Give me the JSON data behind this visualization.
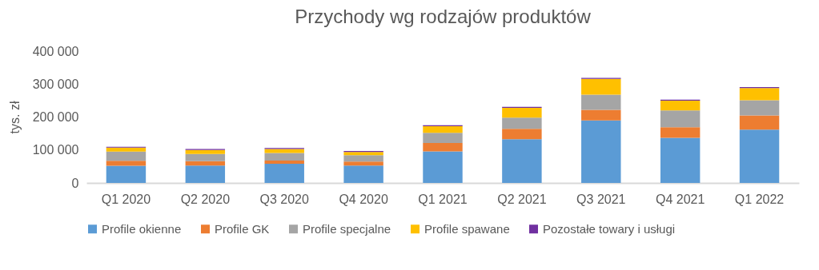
{
  "chart_data": {
    "type": "bar",
    "title": "Przychody wg rodzajów produktów",
    "ylabel": "tys. zł",
    "stacked": true,
    "categories": [
      "Q1 2020",
      "Q2 2020",
      "Q3 2020",
      "Q4 2020",
      "Q1 2021",
      "Q2 2021",
      "Q3 2021",
      "Q4 2021",
      "Q1 2022"
    ],
    "series": [
      {
        "name": "Profile okienne",
        "color": "#5b9bd5",
        "values": [
          52000,
          53000,
          58000,
          53000,
          96000,
          133000,
          190000,
          137000,
          162000
        ]
      },
      {
        "name": "Profile GK",
        "color": "#ed7d31",
        "values": [
          15000,
          13000,
          10000,
          12000,
          25000,
          31000,
          32000,
          32000,
          43000
        ]
      },
      {
        "name": "Profile specjalne",
        "color": "#a5a5a5",
        "values": [
          28000,
          22000,
          23000,
          19000,
          31000,
          34000,
          46000,
          51000,
          46000
        ]
      },
      {
        "name": "Profile spawane",
        "color": "#ffc000",
        "values": [
          12000,
          12000,
          12000,
          10000,
          20000,
          30000,
          48000,
          30000,
          37000
        ]
      },
      {
        "name": "Pozostałe towary i usługi",
        "color": "#7030a0",
        "values": [
          3000,
          3000,
          3000,
          3000,
          3000,
          3000,
          3000,
          3000,
          3000
        ]
      }
    ],
    "ylim": [
      0,
      400000
    ],
    "yticks": [
      {
        "value": 0,
        "label": "0"
      },
      {
        "value": 100000,
        "label": "100 000"
      },
      {
        "value": 200000,
        "label": "200 000"
      },
      {
        "value": 300000,
        "label": "300 000"
      },
      {
        "value": 400000,
        "label": "400 000"
      }
    ],
    "grid": false,
    "legend": "bottom"
  }
}
